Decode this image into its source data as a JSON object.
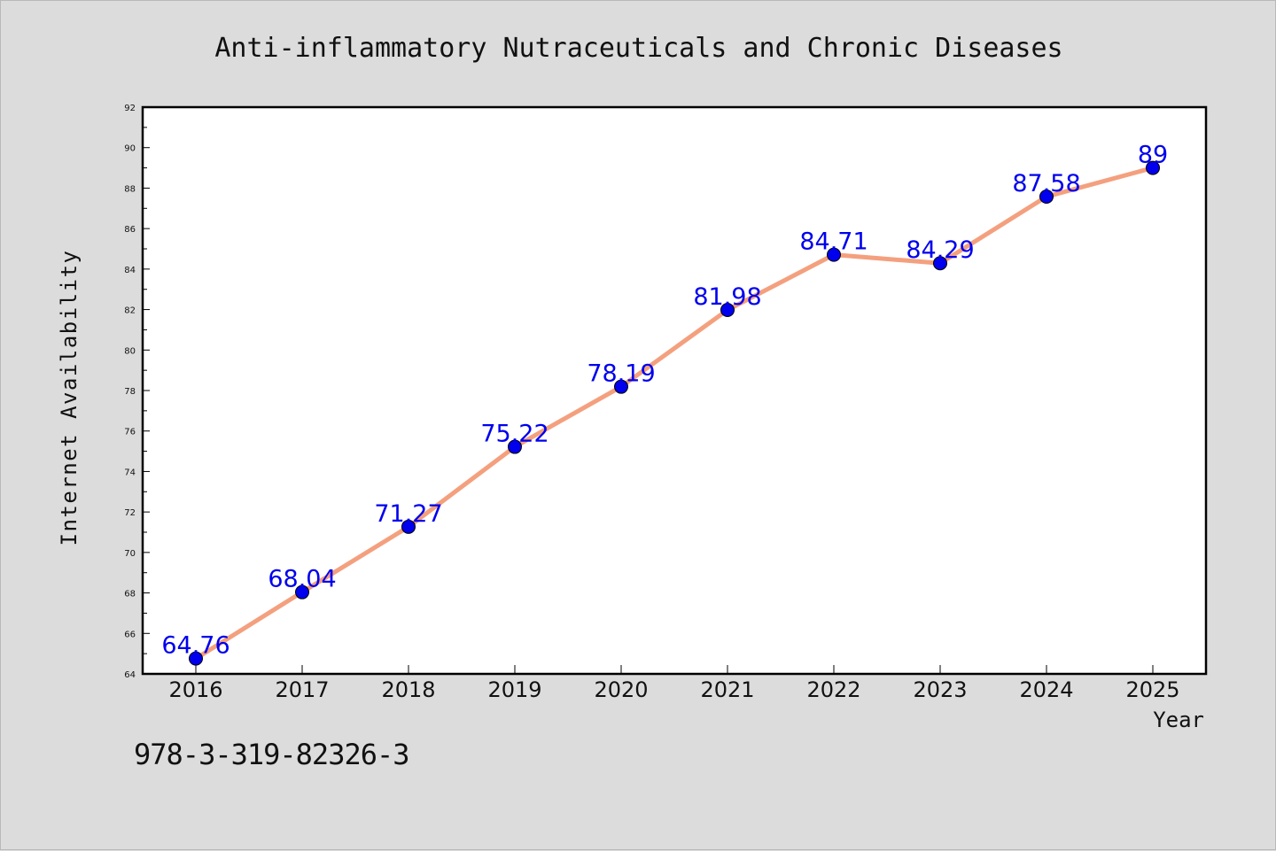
{
  "chart_data": {
    "type": "line",
    "title": "Anti-inflammatory Nutraceuticals and Chronic Diseases",
    "xlabel": "Year",
    "ylabel": "Internet Availability",
    "x": [
      "2016",
      "2017",
      "2018",
      "2019",
      "2020",
      "2021",
      "2022",
      "2023",
      "2024",
      "2025"
    ],
    "series": [
      {
        "values": [
          64.76,
          68.04,
          71.27,
          75.22,
          78.19,
          81.98,
          84.71,
          84.29,
          87.58,
          89
        ],
        "labels": [
          "64.76",
          "68.04",
          "71.27",
          "75.22",
          "78.19",
          "81.98",
          "84.71",
          "84.29",
          "87.58",
          "89"
        ],
        "line_color": "#f4a07e",
        "marker_color": "#0000ee"
      }
    ],
    "ylim": [
      64,
      92
    ],
    "yticks": [
      "64",
      "66",
      "68",
      "70",
      "72",
      "74",
      "76",
      "78",
      "80",
      "82",
      "84",
      "86",
      "88",
      "90",
      "92"
    ],
    "grid": false,
    "legend": "none"
  },
  "footer": {
    "code": "978-3-319-82326-3"
  }
}
